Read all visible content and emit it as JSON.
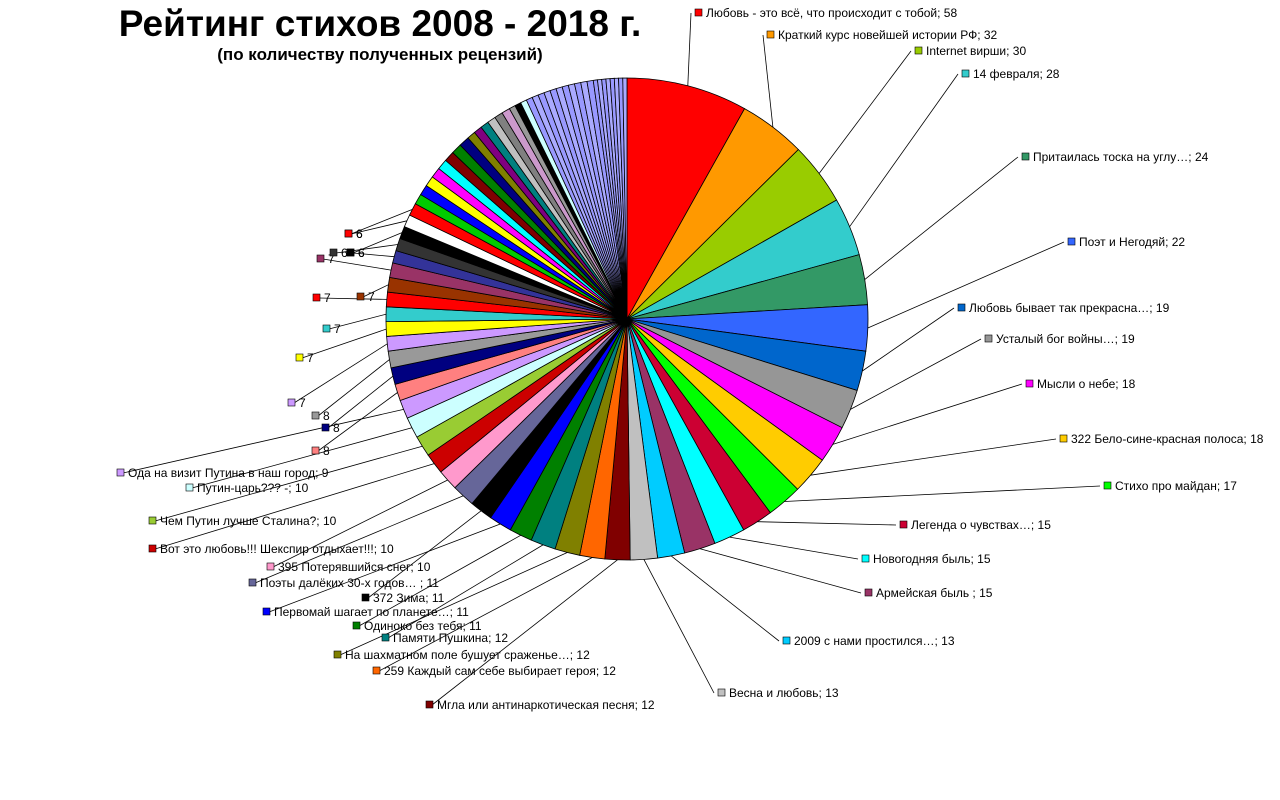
{
  "chart_data": {
    "type": "pie",
    "title": "Рейтинг стихов 2008 - 2018 г.",
    "subtitle": "(по количеству полученных рецензий)",
    "legend": "none",
    "labeled": [
      {
        "label": "Любовь - это всё, что происходит с тобой; 58",
        "value": 58,
        "color": "#ff0000"
      },
      {
        "label": "Краткий курс новейшей истории РФ; 32",
        "value": 32,
        "color": "#ff9900"
      },
      {
        "label": "Internet вирши; 30",
        "value": 30,
        "color": "#99cc00"
      },
      {
        "label": "14 февраля; 28",
        "value": 28,
        "color": "#33cccc"
      },
      {
        "label": "Притаилась тоска на углу…; 24",
        "value": 24,
        "color": "#339966"
      },
      {
        "label": "Поэт и Негодяй; 22",
        "value": 22,
        "color": "#3366ff"
      },
      {
        "label": "Любовь бывает так прекрасна…; 19",
        "value": 19,
        "color": "#0066cc"
      },
      {
        "label": "Усталый бог войны…; 19",
        "value": 19,
        "color": "#969696"
      },
      {
        "label": "Мысли о небе; 18",
        "value": 18,
        "color": "#ff00ff"
      },
      {
        "label": "322 Бело-сине-красная полоса; 18",
        "value": 18,
        "color": "#ffcc00"
      },
      {
        "label": "Стихо про майдан; 17",
        "value": 17,
        "color": "#00ff00"
      },
      {
        "label": "Легенда о чувствах…; 15",
        "value": 15,
        "color": "#cc0033"
      },
      {
        "label": "Новогодняя быль; 15",
        "value": 15,
        "color": "#00ffff"
      },
      {
        "label": "Армейская быль ; 15",
        "value": 15,
        "color": "#993366"
      },
      {
        "label": "2009 с нами простился…; 13",
        "value": 13,
        "color": "#00ccff"
      },
      {
        "label": "Весна и любовь; 13",
        "value": 13,
        "color": "#c0c0c0"
      },
      {
        "label": "Мгла или антинаркотическая песня; 12",
        "value": 12,
        "color": "#800000"
      },
      {
        "label": "259 Каждый сам себе выбирает героя; 12",
        "value": 12,
        "color": "#ff6600"
      },
      {
        "label": "На шахматном поле бушует сраженье…; 12",
        "value": 12,
        "color": "#808000"
      },
      {
        "label": "Памяти Пушкина; 12",
        "value": 12,
        "color": "#008080"
      },
      {
        "label": "Одиноко без тебя; 11",
        "value": 11,
        "color": "#008000"
      },
      {
        "label": "Первомай шагает по планете…; 11",
        "value": 11,
        "color": "#0000ff"
      },
      {
        "label": "372 Зима; 11",
        "value": 11,
        "color": "#000000"
      },
      {
        "label": "Поэты далёких 30-х годов… ; 11",
        "value": 11,
        "color": "#666699"
      },
      {
        "label": "395 Потерявшийся снег; 10",
        "value": 10,
        "color": "#ff99cc"
      },
      {
        "label": "Вот это любовь!!! Шекспир отдыхает!!!; 10",
        "value": 10,
        "color": "#cc0000"
      },
      {
        "label": "Чем Путин лучше Сталина?; 10",
        "value": 10,
        "color": "#99cc33"
      },
      {
        "label": "Путин-царь??? -; 10",
        "value": 10,
        "color": "#ccffff"
      },
      {
        "label": "Ода на визит Путина в наш город; 9",
        "value": 9,
        "color": "#cc99ff"
      },
      {
        "label": "8",
        "value": 8,
        "color": "#ff8080"
      },
      {
        "label": "8",
        "value": 8,
        "color": "#000080"
      },
      {
        "label": "8",
        "value": 8,
        "color": "#999999"
      },
      {
        "label": "7",
        "value": 7,
        "color": "#cc99ff"
      },
      {
        "label": "7",
        "value": 7,
        "color": "#ffff00"
      },
      {
        "label": "7",
        "value": 7,
        "color": "#33cccc"
      },
      {
        "label": "7",
        "value": 7,
        "color": "#ff0000"
      },
      {
        "label": "7",
        "value": 7,
        "color": "#993300"
      },
      {
        "label": "7",
        "value": 7,
        "color": "#993366"
      },
      {
        "label": "6",
        "value": 6,
        "color": "#333399"
      },
      {
        "label": "6",
        "value": 6,
        "color": "#333333"
      },
      {
        "label": "6",
        "value": 6,
        "color": "#000000"
      },
      {
        "label": "6",
        "value": 6,
        "color": "#ffffff"
      },
      {
        "label": "6",
        "value": 6,
        "color": "#ff0000"
      }
    ],
    "unlabeled": [
      {
        "value": 5,
        "color": "#00cc00"
      },
      {
        "value": 5,
        "color": "#0000ff"
      },
      {
        "value": 5,
        "color": "#ffff00"
      },
      {
        "value": 5,
        "color": "#ff00ff"
      },
      {
        "value": 5,
        "color": "#00ffff"
      },
      {
        "value": 5,
        "color": "#800000"
      },
      {
        "value": 5,
        "color": "#008000"
      },
      {
        "value": 5,
        "color": "#000080"
      },
      {
        "value": 4,
        "color": "#808000"
      },
      {
        "value": 4,
        "color": "#800080"
      },
      {
        "value": 4,
        "color": "#008080"
      },
      {
        "value": 4,
        "color": "#c0c0c0"
      },
      {
        "value": 4,
        "color": "#808080"
      },
      {
        "value": 4,
        "color": "#cc99cc"
      },
      {
        "value": 3,
        "color": "#999999"
      },
      {
        "value": 3,
        "color": "#000000"
      },
      {
        "value": 3,
        "color": "#ccffff"
      },
      {
        "value": 3,
        "color": "#9999ff"
      },
      {
        "value": 3,
        "color": "#aaaaff"
      },
      {
        "value": 3,
        "color": "#9999ff"
      },
      {
        "value": 3,
        "color": "#aaaaff"
      },
      {
        "value": 3,
        "color": "#9999ff"
      },
      {
        "value": 3,
        "color": "#aaaaff"
      },
      {
        "value": 3,
        "color": "#9999ff"
      },
      {
        "value": 3,
        "color": "#aaaaff"
      },
      {
        "value": 3,
        "color": "#9999ff"
      },
      {
        "value": 3,
        "color": "#aaaaff"
      },
      {
        "value": 3,
        "color": "#9999ff"
      },
      {
        "value": 2,
        "color": "#9999ff"
      },
      {
        "value": 2,
        "color": "#aaaaff"
      },
      {
        "value": 2,
        "color": "#9999ff"
      },
      {
        "value": 2,
        "color": "#aaaaff"
      },
      {
        "value": 2,
        "color": "#9999ff"
      },
      {
        "value": 2,
        "color": "#aaaaff"
      },
      {
        "value": 2,
        "color": "#9999ff"
      },
      {
        "value": 2,
        "color": "#aaaaff"
      }
    ]
  }
}
